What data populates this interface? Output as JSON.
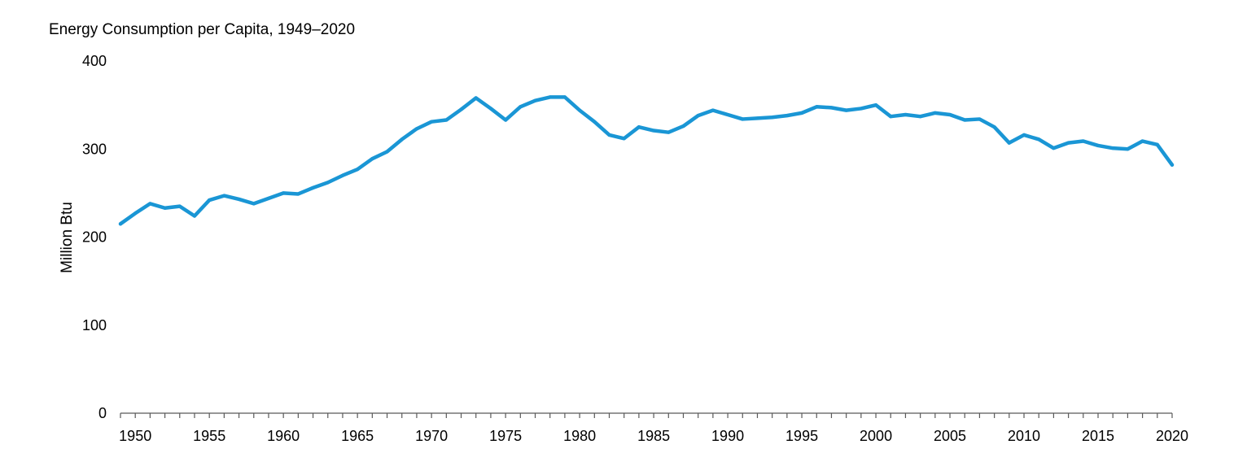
{
  "chart_data": {
    "type": "line",
    "title": "Energy Consumption per Capita, 1949–2020",
    "xlabel": "",
    "ylabel": "Million Btu",
    "xlim": [
      1949,
      2020
    ],
    "ylim": [
      0,
      400
    ],
    "y_ticks": [
      0,
      100,
      200,
      300,
      400
    ],
    "x_ticks": [
      1950,
      1955,
      1960,
      1965,
      1970,
      1975,
      1980,
      1985,
      1990,
      1995,
      2000,
      2005,
      2010,
      2015,
      2020
    ],
    "grid": false,
    "legend": "none",
    "line_color": "#1a96d5",
    "series": [
      {
        "x": [
          1949,
          1950,
          1951,
          1952,
          1953,
          1954,
          1955,
          1956,
          1957,
          1958,
          1959,
          1960,
          1961,
          1962,
          1963,
          1964,
          1965,
          1966,
          1967,
          1968,
          1969,
          1970,
          1971,
          1972,
          1973,
          1974,
          1975,
          1976,
          1977,
          1978,
          1979,
          1980,
          1981,
          1982,
          1983,
          1984,
          1985,
          1986,
          1987,
          1988,
          1989,
          1990,
          1991,
          1992,
          1993,
          1994,
          1995,
          1996,
          1997,
          1998,
          1999,
          2000,
          2001,
          2002,
          2003,
          2004,
          2005,
          2006,
          2007,
          2008,
          2009,
          2010,
          2011,
          2012,
          2013,
          2014,
          2015,
          2016,
          2017,
          2018,
          2019,
          2020
        ],
        "values": [
          215,
          227,
          238,
          233,
          235,
          224,
          242,
          247,
          243,
          238,
          244,
          250,
          249,
          256,
          262,
          270,
          277,
          289,
          297,
          311,
          323,
          331,
          333,
          345,
          358,
          346,
          333,
          348,
          355,
          359,
          359,
          344,
          331,
          316,
          312,
          325,
          321,
          319,
          326,
          338,
          344,
          339,
          334,
          335,
          336,
          338,
          341,
          348,
          347,
          344,
          346,
          350,
          337,
          339,
          337,
          341,
          339,
          333,
          334,
          325,
          307,
          316,
          311,
          301,
          307,
          309,
          304,
          301,
          300,
          309,
          305,
          282
        ]
      }
    ]
  }
}
